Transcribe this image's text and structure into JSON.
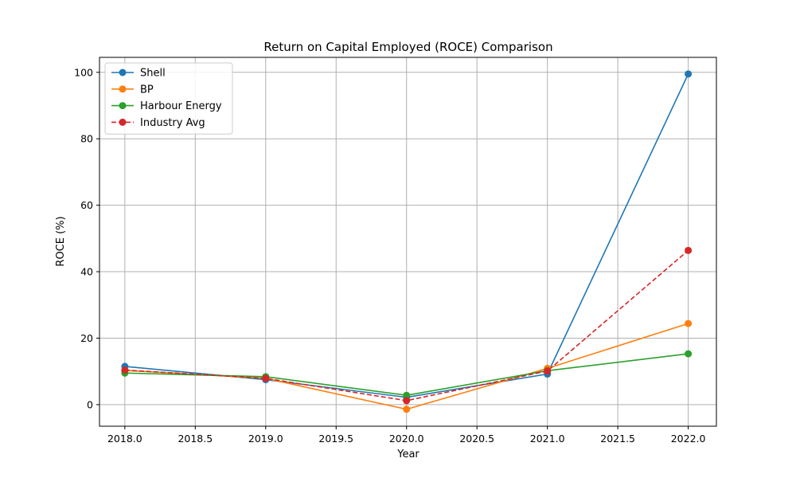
{
  "chart_data": {
    "type": "line",
    "title": "Return on Capital Employed (ROCE) Comparison",
    "xlabel": "Year",
    "ylabel": "ROCE (%)",
    "x": [
      2018,
      2019,
      2020,
      2021,
      2022
    ],
    "xlim": [
      2017.82,
      2022.2
    ],
    "ylim": [
      -6.5,
      104.5
    ],
    "xticks": [
      2018.0,
      2018.5,
      2019.0,
      2019.5,
      2020.0,
      2020.5,
      2021.0,
      2021.5,
      2022.0
    ],
    "xtick_labels": [
      "2018.0",
      "2018.5",
      "2019.0",
      "2019.5",
      "2020.0",
      "2020.5",
      "2021.0",
      "2021.5",
      "2022.0"
    ],
    "yticks": [
      0,
      20,
      40,
      60,
      80,
      100
    ],
    "ytick_labels": [
      "0",
      "20",
      "40",
      "60",
      "80",
      "100"
    ],
    "grid": true,
    "legend_position": "top-left",
    "series": [
      {
        "name": "Shell",
        "color": "#1f77b4",
        "dashed": false,
        "values": [
          11.5,
          7.5,
          2.2,
          9.2,
          99.5
        ]
      },
      {
        "name": "BP",
        "color": "#ff7f0e",
        "dashed": false,
        "values": [
          10.3,
          7.9,
          -1.4,
          10.9,
          24.4
        ]
      },
      {
        "name": "Harbour Energy",
        "color": "#2ca02c",
        "dashed": false,
        "values": [
          9.5,
          8.4,
          2.8,
          10.2,
          15.3
        ]
      },
      {
        "name": "Industry Avg",
        "color": "#d62728",
        "dashed": true,
        "values": [
          10.4,
          7.9,
          1.2,
          10.1,
          46.4
        ]
      }
    ]
  }
}
